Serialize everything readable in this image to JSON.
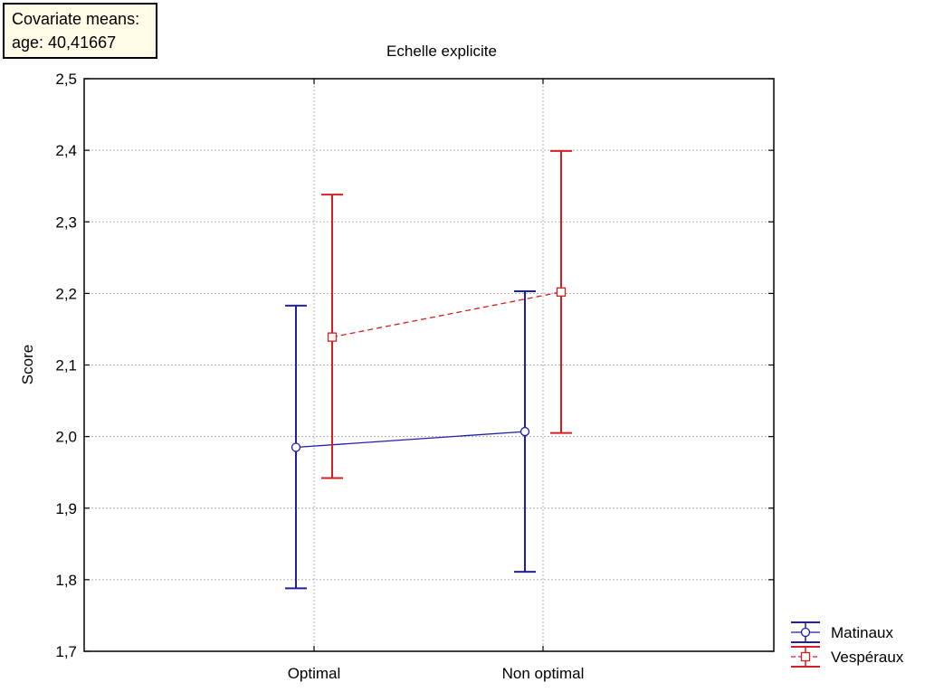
{
  "covariate_box": {
    "line1": "Covariate means:",
    "line2": "age: 40,41667"
  },
  "chart_data": {
    "type": "line",
    "title": "Echelle explicite",
    "xlabel": "",
    "ylabel": "Score",
    "categories": [
      "Optimal",
      "Non optimal"
    ],
    "ylim": [
      1.7,
      2.5
    ],
    "yticks": [
      "1,7",
      "1,8",
      "1,9",
      "2,0",
      "2,1",
      "2,2",
      "2,3",
      "2,4",
      "2,5"
    ],
    "grid": true,
    "legend_position": "bottom-right",
    "series": [
      {
        "name": "Matinaux",
        "color": "#1f1fa8",
        "marker": "circle",
        "line_style": "solid",
        "values": [
          1.985,
          2.007
        ],
        "lower": [
          1.788,
          1.811
        ],
        "upper": [
          2.183,
          2.203
        ]
      },
      {
        "name": "Vespéraux",
        "color": "#d42020",
        "marker": "square",
        "line_style": "dashed",
        "values": [
          2.139,
          2.202
        ],
        "lower": [
          1.942,
          2.005
        ],
        "upper": [
          2.338,
          2.399
        ]
      }
    ]
  }
}
